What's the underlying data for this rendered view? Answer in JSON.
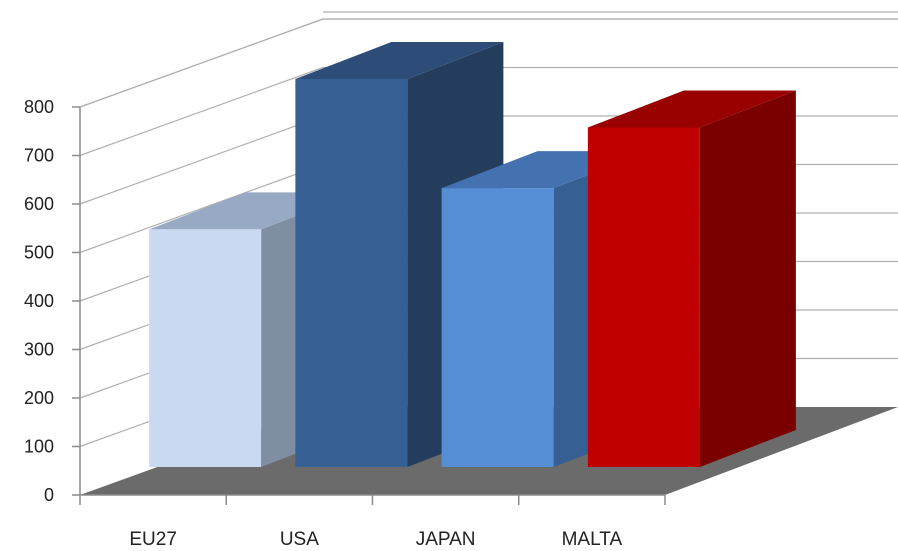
{
  "chart_data": {
    "type": "bar",
    "style": "3d-clustered-column",
    "categories": [
      "EU27",
      "USA",
      "JAPAN",
      "MALTA"
    ],
    "values": [
      490,
      800,
      575,
      700
    ],
    "ylim": [
      0,
      800
    ],
    "yticks": [
      "0",
      "100",
      "200",
      "300",
      "400",
      "500",
      "600",
      "700",
      "800"
    ],
    "grid": true,
    "legend": "none",
    "title": "",
    "xlabel": "",
    "ylabel": "",
    "colors": {
      "bars": [
        {
          "front": "#c9d9f2",
          "side": "#7f8ea3",
          "top": "#98aac3"
        },
        {
          "front": "#365f94",
          "side": "#243d5d",
          "top": "#2d4d78"
        },
        {
          "front": "#558ed5",
          "side": "#365f94",
          "top": "#4471b0"
        },
        {
          "front": "#c00000",
          "side": "#7a0000",
          "top": "#990000"
        }
      ],
      "floor": "#6b6b6b",
      "grid": "#b0b0b0",
      "axis": "#8c8c8c"
    }
  }
}
